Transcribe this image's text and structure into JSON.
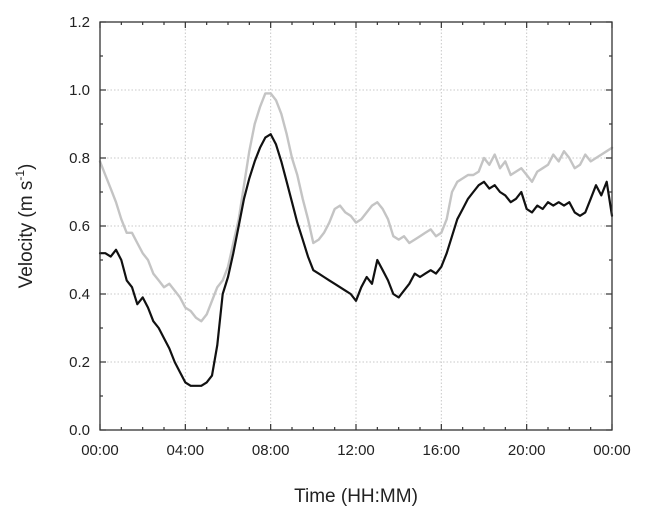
{
  "chart_data": {
    "type": "line",
    "xlabel": "Time (HH:MM)",
    "ylabel_main": "Velocity (m s",
    "ylabel_sup": "-1",
    "ylabel_close": ")",
    "xlim": [
      0,
      24
    ],
    "ylim": [
      0,
      1.2
    ],
    "x_ticks": [
      {
        "value": 0,
        "label": "00:00"
      },
      {
        "value": 4,
        "label": "04:00"
      },
      {
        "value": 8,
        "label": "08:00"
      },
      {
        "value": 12,
        "label": "12:00"
      },
      {
        "value": 16,
        "label": "16:00"
      },
      {
        "value": 20,
        "label": "20:00"
      },
      {
        "value": 24,
        "label": "00:00"
      }
    ],
    "y_ticks": [
      {
        "value": 0,
        "label": "0.0"
      },
      {
        "value": 0.2,
        "label": "0.2"
      },
      {
        "value": 0.4,
        "label": "0.4"
      },
      {
        "value": 0.6,
        "label": "0.6"
      },
      {
        "value": 0.8,
        "label": "0.8"
      },
      {
        "value": 1.0,
        "label": "1.0"
      },
      {
        "value": 1.2,
        "label": "1.2"
      }
    ],
    "grid": true,
    "series": [
      {
        "color": "#c4c4c4",
        "x": [
          0,
          0.25,
          0.5,
          0.75,
          1,
          1.25,
          1.5,
          1.75,
          2,
          2.25,
          2.5,
          2.75,
          3,
          3.25,
          3.5,
          3.75,
          4,
          4.25,
          4.5,
          4.75,
          5,
          5.25,
          5.5,
          5.75,
          6,
          6.25,
          6.5,
          6.75,
          7,
          7.25,
          7.5,
          7.75,
          8,
          8.25,
          8.5,
          8.75,
          9,
          9.25,
          9.5,
          9.75,
          10,
          10.25,
          10.5,
          10.75,
          11,
          11.25,
          11.5,
          11.75,
          12,
          12.25,
          12.5,
          12.75,
          13,
          13.25,
          13.5,
          13.75,
          14,
          14.25,
          14.5,
          14.75,
          15,
          15.25,
          15.5,
          15.75,
          16,
          16.25,
          16.5,
          16.75,
          17,
          17.25,
          17.5,
          17.75,
          18,
          18.25,
          18.5,
          18.75,
          19,
          19.25,
          19.5,
          19.75,
          20,
          20.25,
          20.5,
          20.75,
          21,
          21.25,
          21.5,
          21.75,
          22,
          22.25,
          22.5,
          22.75,
          23,
          23.25,
          23.5,
          23.75,
          24
        ],
        "y": [
          0.79,
          0.75,
          0.71,
          0.67,
          0.62,
          0.58,
          0.58,
          0.55,
          0.52,
          0.5,
          0.46,
          0.44,
          0.42,
          0.43,
          0.41,
          0.39,
          0.36,
          0.35,
          0.33,
          0.32,
          0.34,
          0.38,
          0.42,
          0.44,
          0.48,
          0.55,
          0.62,
          0.72,
          0.82,
          0.9,
          0.95,
          0.99,
          0.99,
          0.97,
          0.93,
          0.87,
          0.8,
          0.75,
          0.68,
          0.62,
          0.55,
          0.56,
          0.58,
          0.61,
          0.65,
          0.66,
          0.64,
          0.63,
          0.61,
          0.62,
          0.64,
          0.66,
          0.67,
          0.65,
          0.62,
          0.57,
          0.56,
          0.57,
          0.55,
          0.56,
          0.57,
          0.58,
          0.59,
          0.57,
          0.58,
          0.62,
          0.7,
          0.73,
          0.74,
          0.75,
          0.75,
          0.76,
          0.8,
          0.78,
          0.81,
          0.77,
          0.79,
          0.75,
          0.76,
          0.77,
          0.75,
          0.73,
          0.76,
          0.77,
          0.78,
          0.81,
          0.79,
          0.82,
          0.8,
          0.77,
          0.78,
          0.81,
          0.79,
          0.8,
          0.81,
          0.82,
          0.83
        ]
      },
      {
        "color": "#111111",
        "x": [
          0,
          0.25,
          0.5,
          0.75,
          1,
          1.25,
          1.5,
          1.75,
          2,
          2.25,
          2.5,
          2.75,
          3,
          3.25,
          3.5,
          3.75,
          4,
          4.25,
          4.5,
          4.75,
          5,
          5.25,
          5.5,
          5.75,
          6,
          6.25,
          6.5,
          6.75,
          7,
          7.25,
          7.5,
          7.75,
          8,
          8.25,
          8.5,
          8.75,
          9,
          9.25,
          9.5,
          9.75,
          10,
          10.25,
          10.5,
          10.75,
          11,
          11.25,
          11.5,
          11.75,
          12,
          12.25,
          12.5,
          12.75,
          13,
          13.25,
          13.5,
          13.75,
          14,
          14.25,
          14.5,
          14.75,
          15,
          15.25,
          15.5,
          15.75,
          16,
          16.25,
          16.5,
          16.75,
          17,
          17.25,
          17.5,
          17.75,
          18,
          18.25,
          18.5,
          18.75,
          19,
          19.25,
          19.5,
          19.75,
          20,
          20.25,
          20.5,
          20.75,
          21,
          21.25,
          21.5,
          21.75,
          22,
          22.25,
          22.5,
          22.75,
          23,
          23.25,
          23.5,
          23.75,
          24
        ],
        "y": [
          0.52,
          0.52,
          0.51,
          0.53,
          0.5,
          0.44,
          0.42,
          0.37,
          0.39,
          0.36,
          0.32,
          0.3,
          0.27,
          0.24,
          0.2,
          0.17,
          0.14,
          0.13,
          0.13,
          0.13,
          0.14,
          0.16,
          0.25,
          0.4,
          0.45,
          0.52,
          0.6,
          0.68,
          0.74,
          0.79,
          0.83,
          0.86,
          0.87,
          0.84,
          0.79,
          0.73,
          0.67,
          0.61,
          0.56,
          0.51,
          0.47,
          0.46,
          0.45,
          0.44,
          0.43,
          0.42,
          0.41,
          0.4,
          0.38,
          0.42,
          0.45,
          0.43,
          0.5,
          0.47,
          0.44,
          0.4,
          0.39,
          0.41,
          0.43,
          0.46,
          0.45,
          0.46,
          0.47,
          0.46,
          0.48,
          0.52,
          0.57,
          0.62,
          0.65,
          0.68,
          0.7,
          0.72,
          0.73,
          0.71,
          0.72,
          0.7,
          0.69,
          0.67,
          0.68,
          0.7,
          0.65,
          0.64,
          0.66,
          0.65,
          0.67,
          0.66,
          0.67,
          0.66,
          0.67,
          0.64,
          0.63,
          0.64,
          0.68,
          0.72,
          0.69,
          0.73,
          0.63
        ]
      }
    ]
  }
}
